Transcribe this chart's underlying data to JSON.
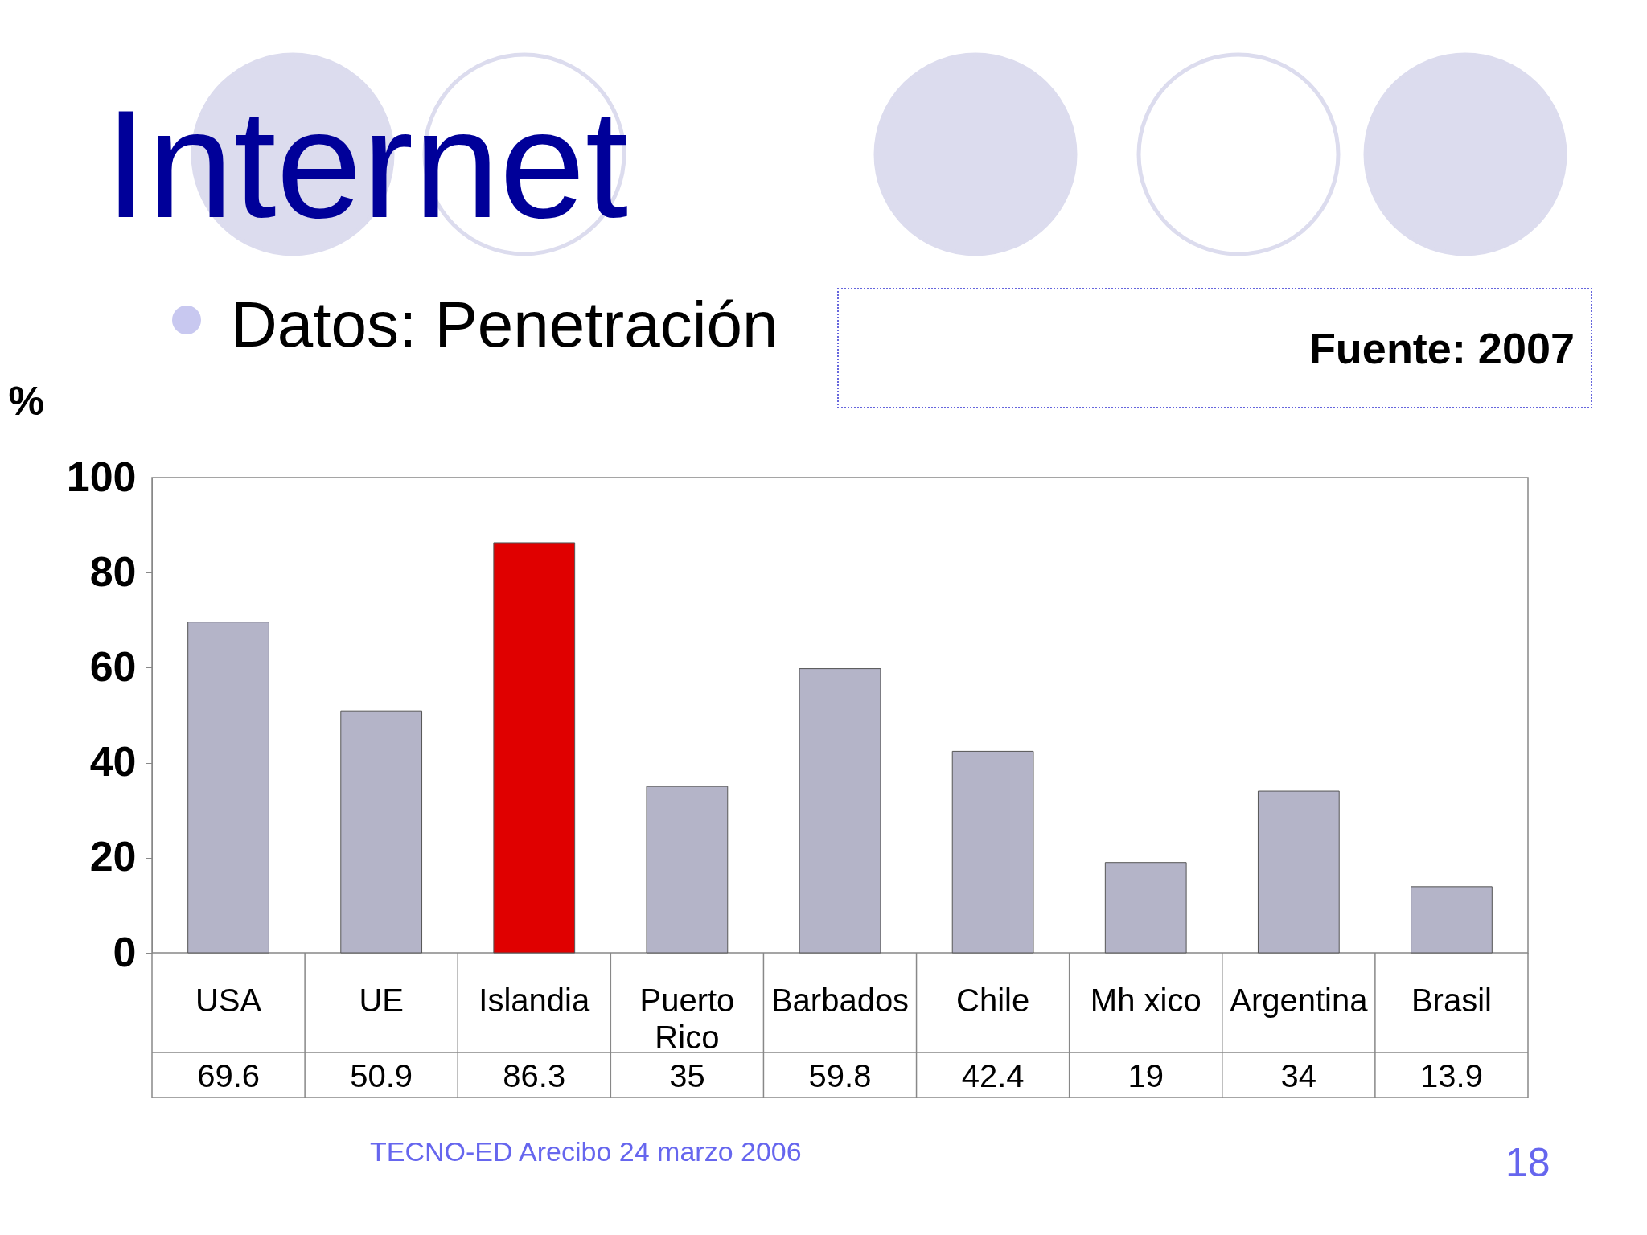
{
  "chart_data": {
    "type": "bar",
    "title": "Internet",
    "subtitle": "Datos: Penetración",
    "ylabel": "%",
    "categories": [
      "USA",
      "UE",
      "Islandia",
      "Puerto Rico",
      "Barbados",
      "Chile",
      "Mh xico",
      "Argentina",
      "Brasil"
    ],
    "values": [
      69.6,
      50.9,
      86.3,
      35,
      59.8,
      42.4,
      19,
      34,
      13.9
    ],
    "colors": [
      "#b4b4c8",
      "#b4b4c8",
      "#e00000",
      "#b4b4c8",
      "#b4b4c8",
      "#b4b4c8",
      "#b4b4c8",
      "#b4b4c8",
      "#b4b4c8"
    ],
    "ylim": [
      0,
      100
    ],
    "yticks": [
      0,
      20,
      40,
      60,
      80,
      100
    ],
    "data_labels": true,
    "annotations": [
      "Fuente: 2007",
      "TECNO-ED Arecibo 24 marzo 2006",
      "18"
    ]
  }
}
